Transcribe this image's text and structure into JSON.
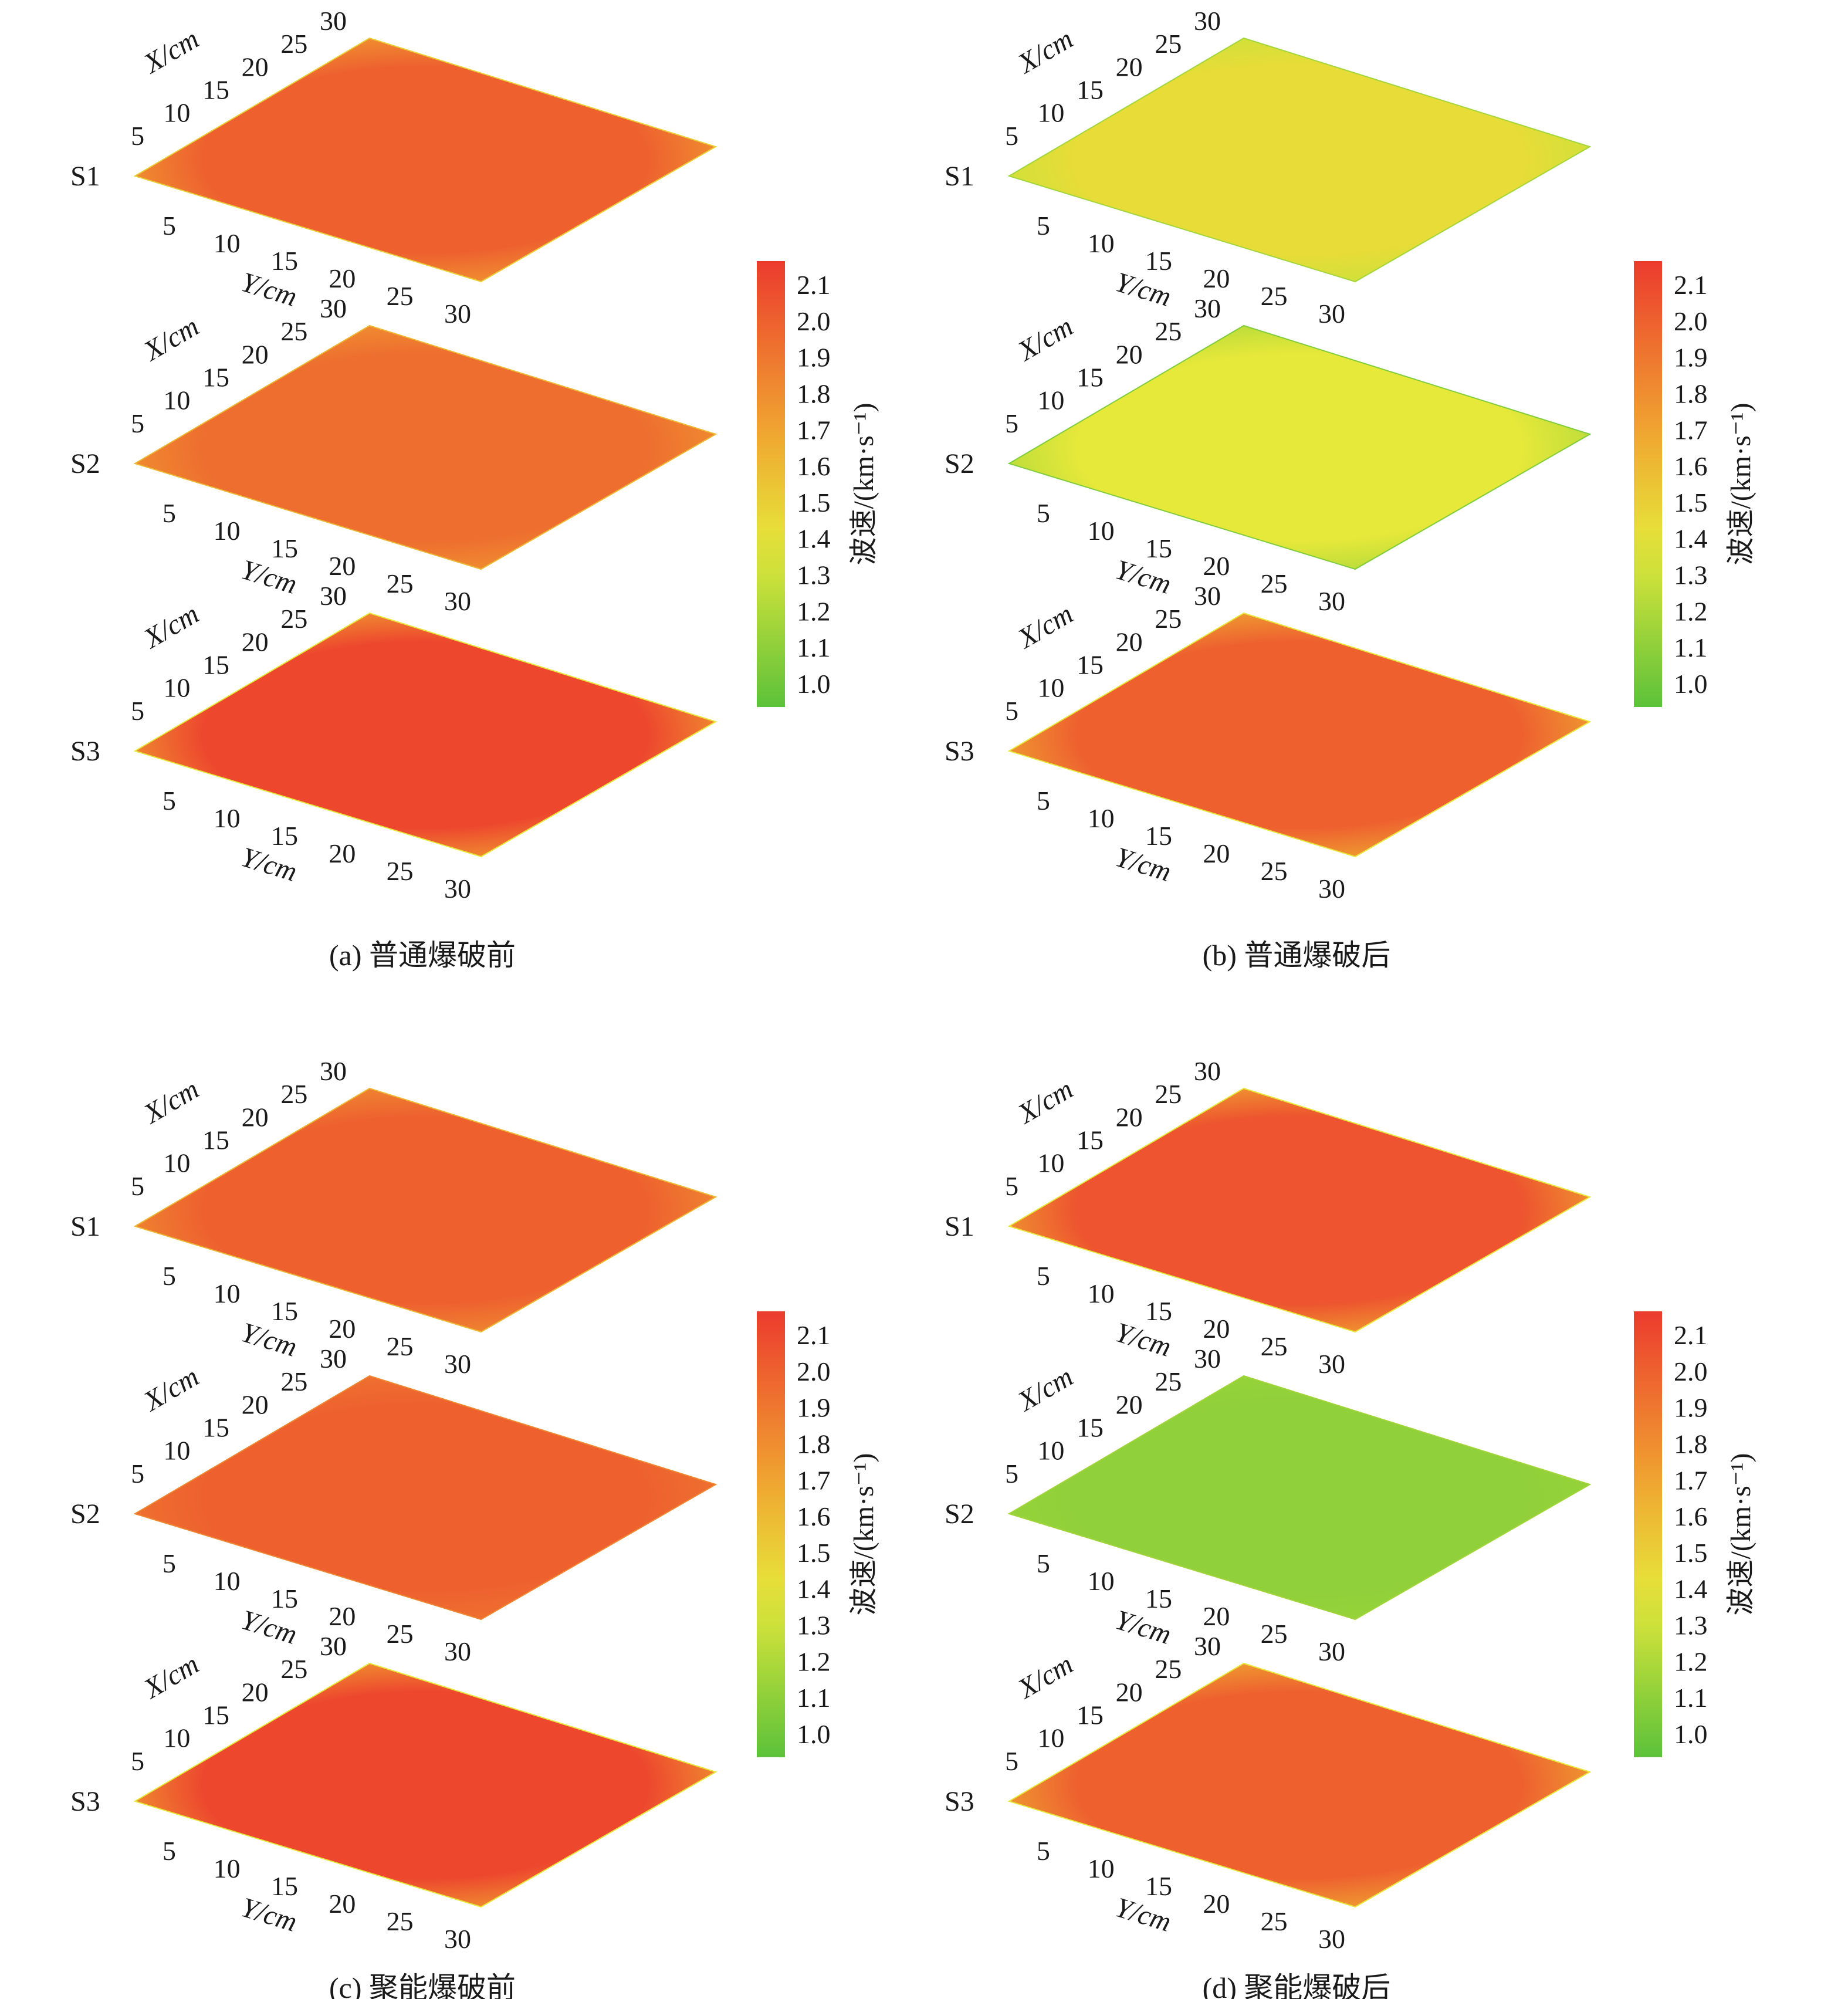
{
  "colors": {
    "scale": [
      "#5cc23a",
      "#e6e83a",
      "#f0a030",
      "#ec3b2e"
    ],
    "red": "#ec3b2e",
    "yellow": "#e6e83a",
    "green": "#5cc23a"
  },
  "chart_data": [
    {
      "type": "heatmap",
      "caption": "(a) 普通爆破前",
      "xlabel": "X/cm",
      "ylabel": "Y/cm",
      "x_ticks": [
        "5",
        "10",
        "15",
        "20",
        "25",
        "30"
      ],
      "y_ticks": [
        "5",
        "10",
        "15",
        "20",
        "25",
        "30"
      ],
      "xlim": [
        0,
        30
      ],
      "ylim": [
        0,
        30
      ],
      "sections": [
        {
          "label": "S1",
          "dominant_wave_speed": 1.95,
          "edge_wave_speed": 1.5
        },
        {
          "label": "S2",
          "dominant_wave_speed": 1.9,
          "edge_wave_speed": 1.6
        },
        {
          "label": "S3",
          "dominant_wave_speed": 2.05,
          "edge_wave_speed": 1.4
        }
      ],
      "colorbar": {
        "label": "波速/(km·s⁻¹)",
        "ticks": [
          "1.0",
          "1.1",
          "1.2",
          "1.3",
          "1.4",
          "1.5",
          "1.6",
          "1.7",
          "1.8",
          "1.9",
          "2.0",
          "2.1"
        ],
        "range": [
          1.0,
          2.1
        ]
      }
    },
    {
      "type": "heatmap",
      "caption": "(b) 普通爆破后",
      "xlabel": "X/cm",
      "ylabel": "Y/cm",
      "x_ticks": [
        "5",
        "10",
        "15",
        "20",
        "25",
        "30"
      ],
      "y_ticks": [
        "5",
        "10",
        "15",
        "20",
        "25",
        "30"
      ],
      "xlim": [
        0,
        30
      ],
      "ylim": [
        0,
        30
      ],
      "sections": [
        {
          "label": "S1",
          "dominant_wave_speed": 1.45,
          "edge_wave_speed": 1.2
        },
        {
          "label": "S2",
          "dominant_wave_speed": 1.4,
          "edge_wave_speed": 1.1
        },
        {
          "label": "S3",
          "dominant_wave_speed": 1.95,
          "edge_wave_speed": 1.4
        }
      ],
      "colorbar": {
        "label": "波速/(km·s⁻¹)",
        "ticks": [
          "1.0",
          "1.1",
          "1.2",
          "1.3",
          "1.4",
          "1.5",
          "1.6",
          "1.7",
          "1.8",
          "1.9",
          "2.0",
          "2.1"
        ],
        "range": [
          1.0,
          2.1
        ]
      }
    },
    {
      "type": "heatmap",
      "caption": "(c) 聚能爆破前",
      "xlabel": "X/cm",
      "ylabel": "Y/cm",
      "x_ticks": [
        "5",
        "10",
        "15",
        "20",
        "25",
        "30"
      ],
      "y_ticks": [
        "5",
        "10",
        "15",
        "20",
        "25",
        "30"
      ],
      "xlim": [
        0,
        30
      ],
      "ylim": [
        0,
        30
      ],
      "sections": [
        {
          "label": "S1",
          "dominant_wave_speed": 1.95,
          "edge_wave_speed": 1.6
        },
        {
          "label": "S2",
          "dominant_wave_speed": 1.95,
          "edge_wave_speed": 1.8
        },
        {
          "label": "S3",
          "dominant_wave_speed": 2.05,
          "edge_wave_speed": 1.4
        }
      ],
      "colorbar": {
        "label": "波速/(km·s⁻¹)",
        "ticks": [
          "1.0",
          "1.1",
          "1.2",
          "1.3",
          "1.4",
          "1.5",
          "1.6",
          "1.7",
          "1.8",
          "1.9",
          "2.0",
          "2.1"
        ],
        "range": [
          1.0,
          2.1
        ]
      }
    },
    {
      "type": "heatmap",
      "caption": "(d) 聚能爆破后",
      "xlabel": "X/cm",
      "ylabel": "Y/cm",
      "x_ticks": [
        "5",
        "10",
        "15",
        "20",
        "25",
        "30"
      ],
      "y_ticks": [
        "5",
        "10",
        "15",
        "20",
        "25",
        "30"
      ],
      "xlim": [
        0,
        30
      ],
      "ylim": [
        0,
        30
      ],
      "sections": [
        {
          "label": "S1",
          "dominant_wave_speed": 2.0,
          "edge_wave_speed": 1.4
        },
        {
          "label": "S2",
          "dominant_wave_speed": 1.15,
          "edge_wave_speed": 1.2
        },
        {
          "label": "S3",
          "dominant_wave_speed": 1.95,
          "edge_wave_speed": 1.4
        }
      ],
      "colorbar": {
        "label": "波速/(km·s⁻¹)",
        "ticks": [
          "1.0",
          "1.1",
          "1.2",
          "1.3",
          "1.4",
          "1.5",
          "1.6",
          "1.7",
          "1.8",
          "1.9",
          "2.0",
          "2.1"
        ],
        "range": [
          1.0,
          2.1
        ]
      }
    }
  ]
}
